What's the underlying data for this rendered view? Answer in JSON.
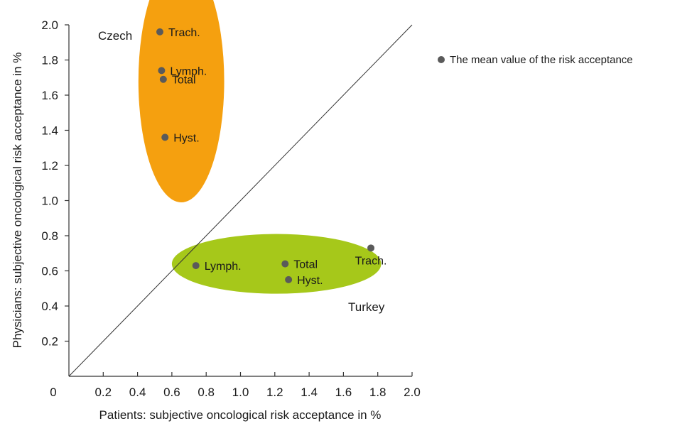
{
  "chart_data": {
    "type": "scatter",
    "title": "",
    "xlabel": "Patients: subjective oncological risk acceptance in %",
    "ylabel": "Physicians: subjective oncological risk acceptance in %",
    "xlim": [
      0,
      2.0
    ],
    "ylim": [
      0,
      2.0
    ],
    "x_ticks": [
      "0.2",
      "0.4",
      "0.6",
      "0.8",
      "1.0",
      "1.2",
      "1.4",
      "1.6",
      "1.8",
      "2.0"
    ],
    "y_ticks": [
      "0.2",
      "0.4",
      "0.6",
      "0.8",
      "1.0",
      "1.2",
      "1.4",
      "1.6",
      "1.8",
      "2.0"
    ],
    "origin_label": "0",
    "reference_line": {
      "from": [
        0,
        0
      ],
      "to": [
        2.0,
        2.0
      ],
      "color": "#333333"
    },
    "grid": false,
    "legend": {
      "position": "right",
      "label": "The mean value of the risk acceptance",
      "marker_color": "#5a5a5a"
    },
    "groups": [
      {
        "name": "Czech",
        "color": "#f5a00f",
        "points": [
          {
            "label": "Trach.",
            "x": 0.53,
            "y": 1.96
          },
          {
            "label": "Lymph.",
            "x": 0.54,
            "y": 1.74
          },
          {
            "label": "Total",
            "x": 0.55,
            "y": 1.69
          },
          {
            "label": "Hyst.",
            "x": 0.56,
            "y": 1.36
          }
        ]
      },
      {
        "name": "Turkey",
        "color": "#a6c81a",
        "points": [
          {
            "label": "Lymph.",
            "x": 0.74,
            "y": 0.63
          },
          {
            "label": "Total",
            "x": 1.26,
            "y": 0.64
          },
          {
            "label": "Hyst.",
            "x": 1.28,
            "y": 0.55
          },
          {
            "label": "Trach.",
            "x": 1.76,
            "y": 0.73
          }
        ]
      }
    ]
  }
}
